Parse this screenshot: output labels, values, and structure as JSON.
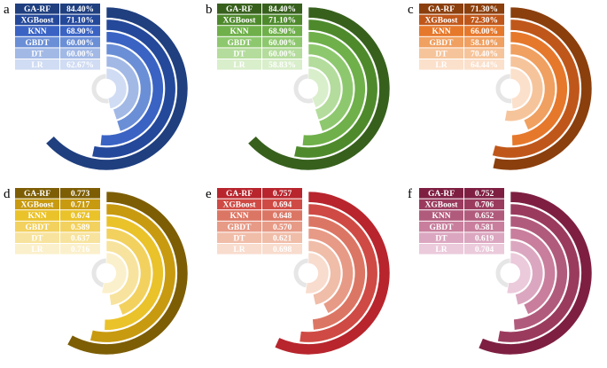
{
  "chart_data": [
    {
      "type": "radial-bar",
      "panel_label": "a",
      "categories": [
        "GA-RF",
        "XGBoost",
        "KNN",
        "GBDT",
        "DT",
        "LR"
      ],
      "values": [
        84.4,
        71.1,
        68.9,
        60.0,
        60.0,
        62.67
      ],
      "value_labels": [
        "84.40%",
        "71.10%",
        "68.90%",
        "60.00%",
        "60.00%",
        "62.67%"
      ],
      "full_scale": 100,
      "colors": [
        "#1f3f7f",
        "#24489a",
        "#3a63c4",
        "#6b8fd6",
        "#a2b9e6",
        "#d0dcf3"
      ]
    },
    {
      "type": "radial-bar",
      "panel_label": "b",
      "categories": [
        "GA-RF",
        "XGBoost",
        "KNN",
        "GBDT",
        "DT",
        "LR"
      ],
      "values": [
        84.4,
        71.1,
        68.9,
        60.0,
        60.0,
        58.83
      ],
      "value_labels": [
        "84.40%",
        "71.10%",
        "68.90%",
        "60.00%",
        "60.00%",
        "58.83%"
      ],
      "full_scale": 100,
      "colors": [
        "#37601d",
        "#4e8a2c",
        "#6fb04a",
        "#8ec86e",
        "#b4dc9c",
        "#d9eecb"
      ]
    },
    {
      "type": "radial-bar",
      "panel_label": "c",
      "categories": [
        "GA-RF",
        "XGBoost",
        "KNN",
        "GBDT",
        "DT",
        "LR"
      ],
      "values": [
        71.3,
        72.3,
        66.0,
        58.1,
        70.4,
        64.44
      ],
      "value_labels": [
        "71.30%",
        "72.30%",
        "66.00%",
        "58.10%",
        "70.40%",
        "64.44%"
      ],
      "full_scale": 100,
      "colors": [
        "#8a3f0d",
        "#c0571a",
        "#e6782b",
        "#f0a060",
        "#f6c49b",
        "#fbe0cb"
      ]
    },
    {
      "type": "radial-bar",
      "panel_label": "d",
      "categories": [
        "GA-RF",
        "XGBoost",
        "KNN",
        "GBDT",
        "DT",
        "LR"
      ],
      "values": [
        0.773,
        0.717,
        0.674,
        0.589,
        0.637,
        0.716
      ],
      "value_labels": [
        "0.773",
        "0.717",
        "0.674",
        "0.589",
        "0.637",
        "0.716"
      ],
      "full_scale": 1,
      "colors": [
        "#7d5e05",
        "#c89a10",
        "#eac22a",
        "#f2d15e",
        "#f7e39d",
        "#fbf0cc"
      ]
    },
    {
      "type": "radial-bar",
      "panel_label": "e",
      "categories": [
        "GA-RF",
        "XGBoost",
        "KNN",
        "GBDT",
        "DT",
        "LR"
      ],
      "values": [
        0.757,
        0.694,
        0.648,
        0.57,
        0.621,
        0.698
      ],
      "value_labels": [
        "0.757",
        "0.694",
        "0.648",
        "0.570",
        "0.621",
        "0.698"
      ],
      "full_scale": 1,
      "colors": [
        "#b8252d",
        "#cf4a44",
        "#dc7664",
        "#e79a86",
        "#f0bda9",
        "#f8dccd"
      ]
    },
    {
      "type": "radial-bar",
      "panel_label": "f",
      "categories": [
        "GA-RF",
        "XGBoost",
        "KNN",
        "GBDT",
        "DT",
        "LR"
      ],
      "values": [
        0.752,
        0.706,
        0.652,
        0.581,
        0.619,
        0.704
      ],
      "value_labels": [
        "0.752",
        "0.706",
        "0.652",
        "0.581",
        "0.619",
        "0.704"
      ],
      "full_scale": 1,
      "colors": [
        "#7e1f42",
        "#9a3b5e",
        "#b15b7c",
        "#c87e9c",
        "#dba7c0",
        "#ebcadb"
      ]
    }
  ]
}
